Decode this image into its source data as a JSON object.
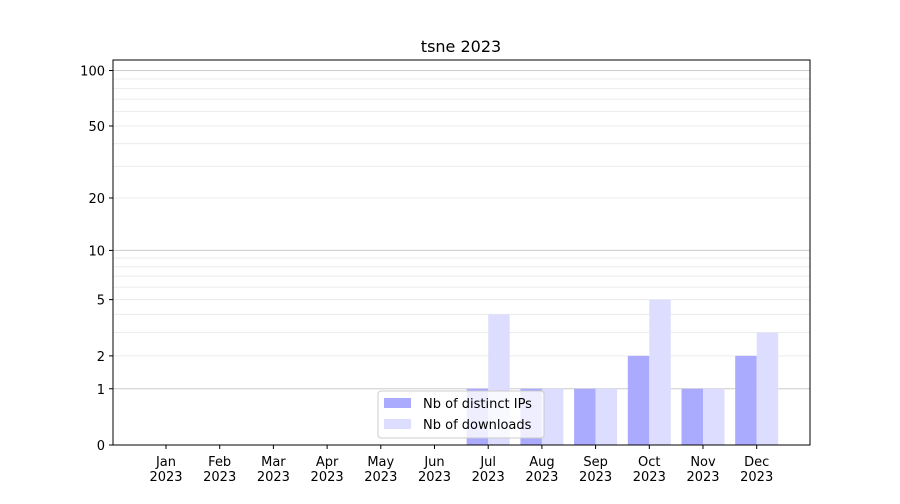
{
  "chart_data": {
    "type": "bar",
    "title": "tsne 2023",
    "xlabel": "",
    "ylabel": "",
    "yscale": "symlog (log of 1+y)",
    "ylim": [
      0,
      114
    ],
    "yticks": [
      0,
      1,
      2,
      5,
      10,
      20,
      50,
      100
    ],
    "grid": true,
    "legend_position": "lower-center",
    "categories": [
      "Jan\n2023",
      "Feb\n2023",
      "Mar\n2023",
      "Apr\n2023",
      "May\n2023",
      "Jun\n2023",
      "Jul\n2023",
      "Aug\n2023",
      "Sep\n2023",
      "Oct\n2023",
      "Nov\n2023",
      "Dec\n2023"
    ],
    "series": [
      {
        "name": "Nb of distinct IPs",
        "color": "#aaaaff",
        "values": [
          0,
          0,
          0,
          0,
          0,
          0,
          1,
          1,
          1,
          2,
          1,
          2
        ]
      },
      {
        "name": "Nb of downloads",
        "color": "#ddddff",
        "values": [
          0,
          0,
          0,
          0,
          0,
          0,
          4,
          1,
          1,
          5,
          1,
          3
        ]
      }
    ]
  }
}
